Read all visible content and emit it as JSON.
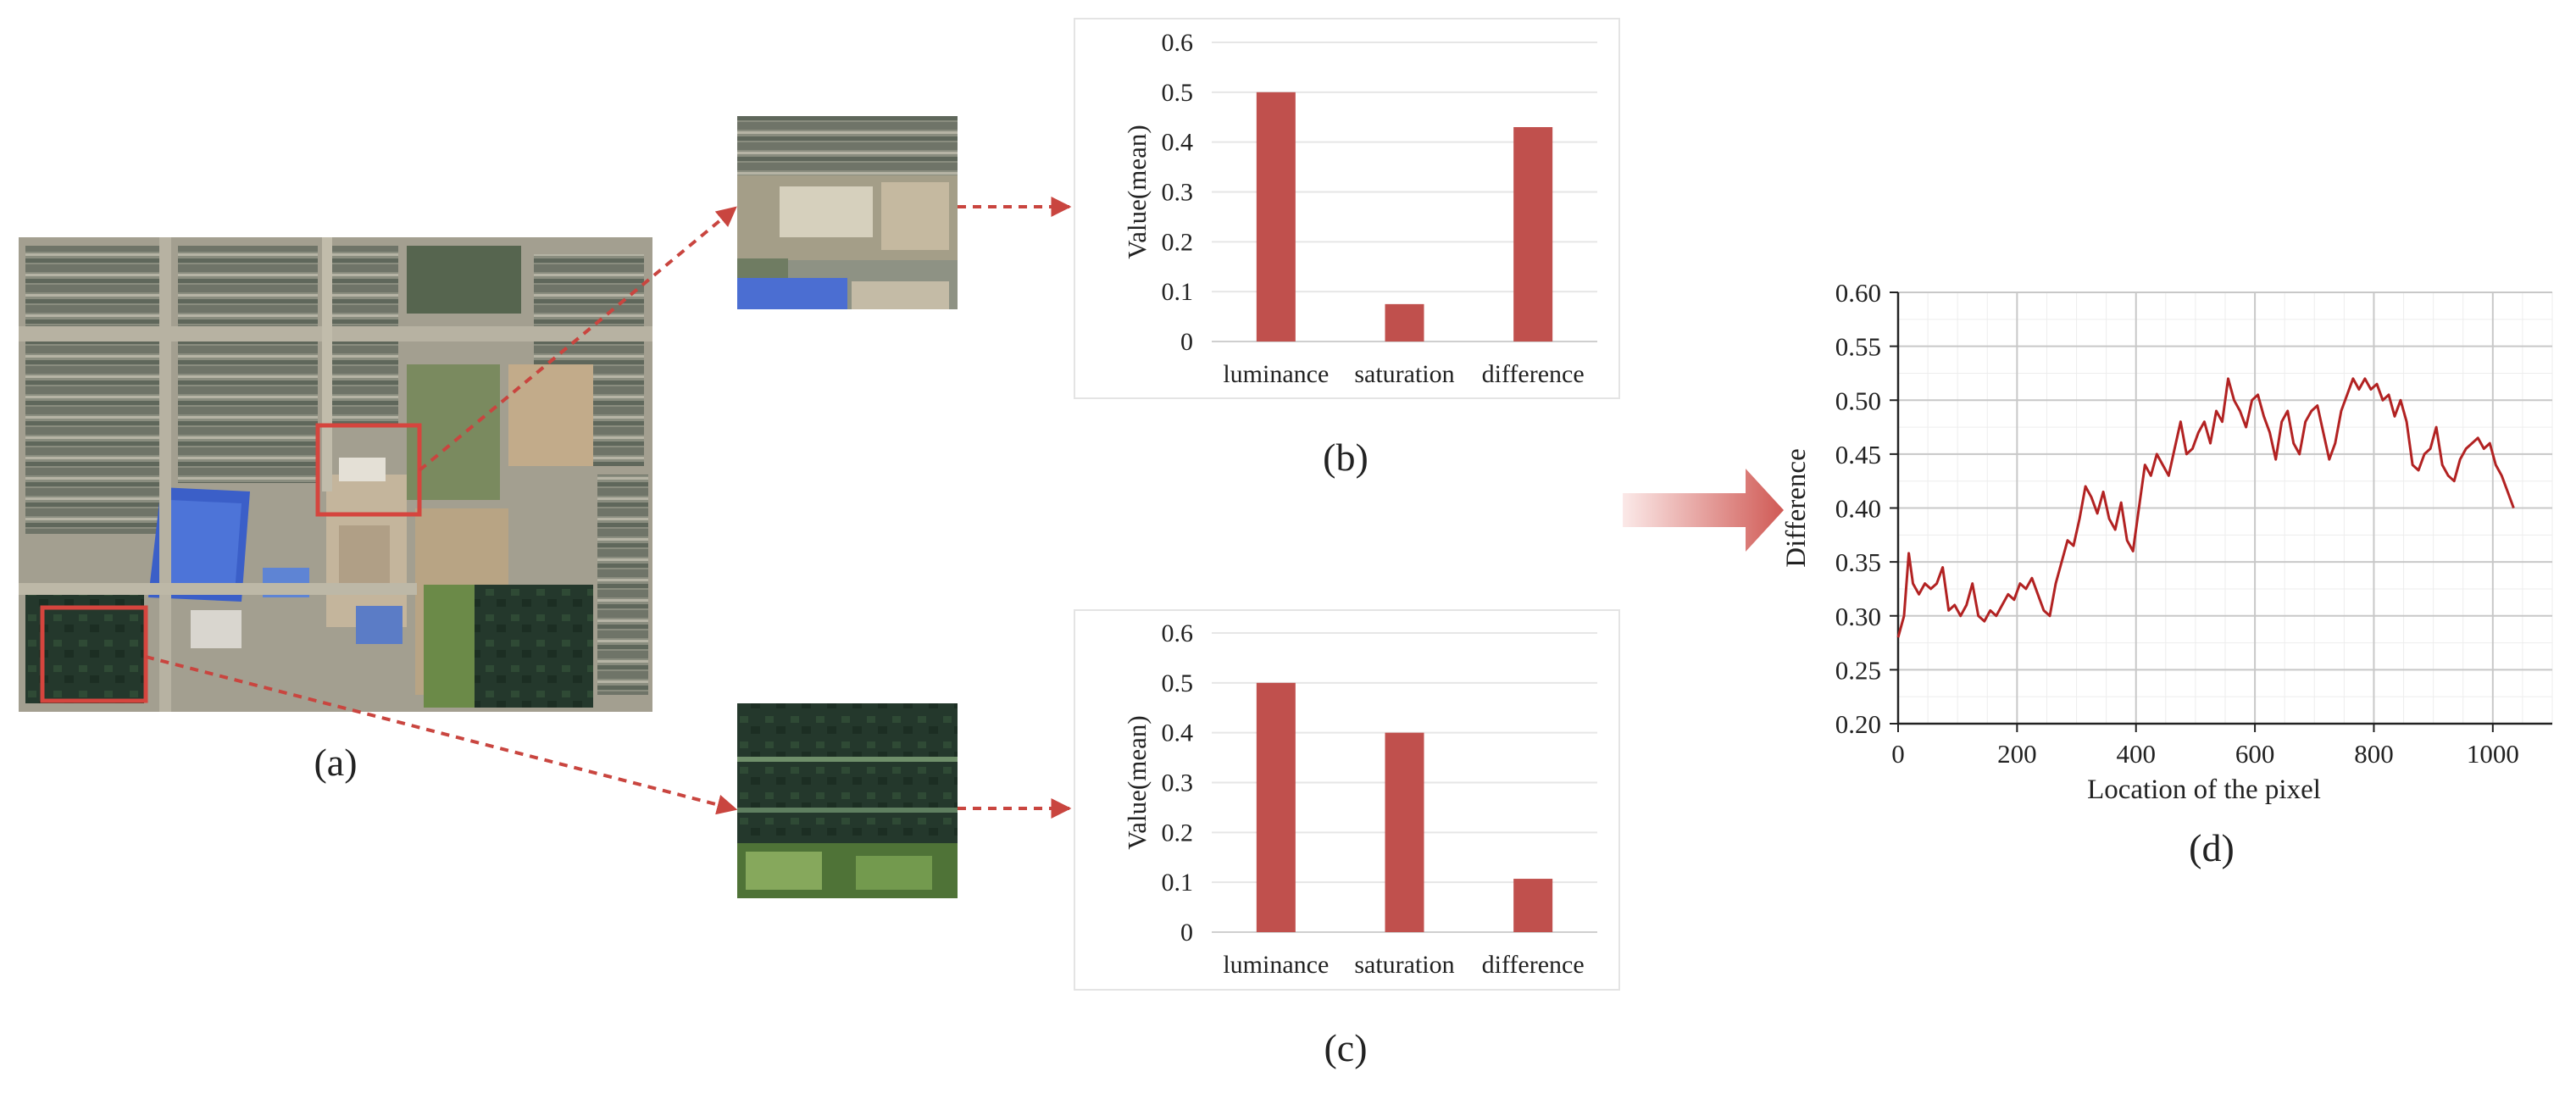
{
  "panels": {
    "a": {
      "caption": "(a)"
    },
    "b": {
      "caption": "(b)"
    },
    "c": {
      "caption": "(c)"
    },
    "d": {
      "caption": "(d)"
    }
  },
  "colors": {
    "bar": "#c0504d",
    "line": "#b22222",
    "callout": "#c9453f",
    "arrow_light": "#f5d6d4"
  },
  "images": {
    "satellite_overview": "farmland-satellite-image",
    "crop_b": "bare-soil-crop-image",
    "crop_c": "vegetation-crop-image"
  },
  "chart_data": [
    {
      "id": "b",
      "type": "bar",
      "ylabel": "Value(mean)",
      "ylim": [
        0,
        0.6
      ],
      "yticks": [
        "0",
        "0.1",
        "0.2",
        "0.3",
        "0.4",
        "0.5",
        "0.6"
      ],
      "categories": [
        "luminance",
        "saturation",
        "difference"
      ],
      "values": [
        0.5,
        0.075,
        0.43
      ],
      "grid": true
    },
    {
      "id": "c",
      "type": "bar",
      "ylabel": "Value(mean)",
      "ylim": [
        0,
        0.6
      ],
      "yticks": [
        "0",
        "0.1",
        "0.2",
        "0.3",
        "0.4",
        "0.5",
        "0.6"
      ],
      "categories": [
        "luminance",
        "saturation",
        "difference"
      ],
      "values": [
        0.5,
        0.4,
        0.107
      ],
      "grid": true
    },
    {
      "id": "d",
      "type": "line",
      "xlabel": "Location of the pixel",
      "ylabel": "Difference",
      "xlim": [
        0,
        1100
      ],
      "ylim": [
        0.2,
        0.6
      ],
      "xticks": [
        "0",
        "200",
        "400",
        "600",
        "800",
        "1000"
      ],
      "yticks": [
        "0.20",
        "0.25",
        "0.30",
        "0.35",
        "0.40",
        "0.45",
        "0.50",
        "0.55",
        "0.60"
      ],
      "grid": true,
      "series": [
        {
          "x": [
            0,
            10,
            18,
            25,
            35,
            45,
            55,
            65,
            75,
            85,
            95,
            105,
            115,
            125,
            135,
            145,
            155,
            165,
            175,
            185,
            195,
            205,
            215,
            225,
            235,
            245,
            255,
            265,
            275,
            285,
            295,
            305,
            315,
            325,
            335,
            345,
            355,
            365,
            375,
            385,
            395,
            405,
            415,
            425,
            435,
            445,
            455,
            465,
            475,
            485,
            495,
            505,
            515,
            525,
            535,
            545,
            555,
            565,
            575,
            585,
            595,
            605,
            615,
            625,
            635,
            645,
            655,
            665,
            675,
            685,
            695,
            705,
            715,
            725,
            735,
            745,
            755,
            765,
            775,
            785,
            795,
            805,
            815,
            825,
            835,
            845,
            855,
            865,
            875,
            885,
            895,
            905,
            915,
            925,
            935,
            945,
            955,
            965,
            975,
            985,
            995,
            1005,
            1015,
            1025,
            1035
          ],
          "y": [
            0.28,
            0.3,
            0.358,
            0.33,
            0.32,
            0.33,
            0.325,
            0.33,
            0.345,
            0.305,
            0.31,
            0.3,
            0.31,
            0.33,
            0.3,
            0.295,
            0.305,
            0.3,
            0.31,
            0.32,
            0.315,
            0.33,
            0.325,
            0.335,
            0.32,
            0.305,
            0.3,
            0.33,
            0.35,
            0.37,
            0.365,
            0.39,
            0.42,
            0.41,
            0.395,
            0.415,
            0.39,
            0.38,
            0.405,
            0.37,
            0.36,
            0.4,
            0.44,
            0.43,
            0.45,
            0.44,
            0.43,
            0.455,
            0.48,
            0.45,
            0.455,
            0.47,
            0.48,
            0.46,
            0.49,
            0.48,
            0.52,
            0.5,
            0.49,
            0.475,
            0.5,
            0.505,
            0.485,
            0.47,
            0.445,
            0.48,
            0.49,
            0.46,
            0.45,
            0.48,
            0.49,
            0.495,
            0.47,
            0.445,
            0.46,
            0.49,
            0.505,
            0.52,
            0.51,
            0.52,
            0.51,
            0.515,
            0.5,
            0.505,
            0.485,
            0.5,
            0.48,
            0.44,
            0.435,
            0.45,
            0.455,
            0.475,
            0.44,
            0.43,
            0.425,
            0.445,
            0.455,
            0.46,
            0.465,
            0.455,
            0.46,
            0.44,
            0.43,
            0.415,
            0.4
          ]
        }
      ]
    }
  ]
}
